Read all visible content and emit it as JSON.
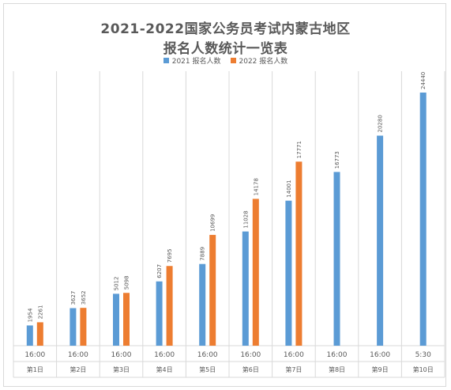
{
  "chart_data": {
    "type": "bar",
    "title": [
      "2021-2022国家公务员考试内蒙古地区",
      "报名人数统计一览表"
    ],
    "categories": [
      {
        "time": "16:00",
        "day": "第1日"
      },
      {
        "time": "16:00",
        "day": "第2日"
      },
      {
        "time": "16:00",
        "day": "第3日"
      },
      {
        "time": "16:00",
        "day": "第4日"
      },
      {
        "time": "16:00",
        "day": "第5日"
      },
      {
        "time": "16:00",
        "day": "第6日"
      },
      {
        "time": "16:00",
        "day": "第7日"
      },
      {
        "time": "16:00",
        "day": "第8日"
      },
      {
        "time": "16:00",
        "day": "第9日"
      },
      {
        "time": "5:30",
        "day": "第10日"
      }
    ],
    "series": [
      {
        "name": "2021 报名人数",
        "color": "#5b9bd5",
        "values": [
          1954,
          3627,
          5012,
          6207,
          7889,
          11028,
          14001,
          16773,
          20280,
          24440
        ]
      },
      {
        "name": "2022 报名人数",
        "color": "#ed7d31",
        "values": [
          2261,
          3652,
          5098,
          7695,
          10699,
          14178,
          17771,
          null,
          null,
          null
        ]
      }
    ],
    "ylim": [
      0,
      26000
    ],
    "legend": "top-center",
    "grid": "vertical category separators"
  }
}
